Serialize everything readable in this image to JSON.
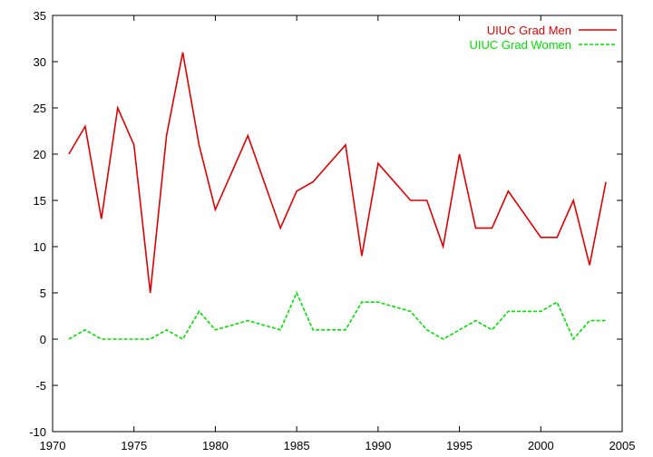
{
  "chart_data": {
    "type": "line",
    "title": "",
    "xlabel": "",
    "ylabel": "",
    "xlim": [
      1970,
      2005
    ],
    "ylim": [
      -10,
      35
    ],
    "xticks": [
      1970,
      1975,
      1980,
      1985,
      1990,
      1995,
      2000,
      2005
    ],
    "yticks": [
      -10,
      -5,
      0,
      5,
      10,
      15,
      20,
      25,
      30,
      35
    ],
    "grid": false,
    "legend_position": "top-right",
    "x": [
      1971,
      1972,
      1973,
      1974,
      1975,
      1976,
      1977,
      1978,
      1979,
      1980,
      1982,
      1984,
      1985,
      1986,
      1988,
      1989,
      1990,
      1992,
      1993,
      1994,
      1995,
      1996,
      1997,
      1998,
      2000,
      2001,
      2002,
      2003,
      2004
    ],
    "series": [
      {
        "name": "UIUC Grad Men",
        "color": "#e00000",
        "dash": "solid",
        "values": [
          20,
          23,
          13,
          25,
          21,
          5,
          22,
          31,
          21,
          14,
          22,
          12,
          16,
          17,
          21,
          9,
          19,
          15,
          15,
          10,
          20,
          12,
          12,
          16,
          11,
          11,
          15,
          8,
          17
        ]
      },
      {
        "name": "UIUC Grad Women",
        "color": "#00e000",
        "dash": "dashed",
        "values": [
          0,
          1,
          0,
          0,
          0,
          0,
          1,
          0,
          3,
          1,
          2,
          1,
          5,
          1,
          1,
          4,
          4,
          3,
          1,
          0,
          1,
          2,
          1,
          3,
          3,
          4,
          0,
          2,
          2
        ]
      }
    ]
  }
}
